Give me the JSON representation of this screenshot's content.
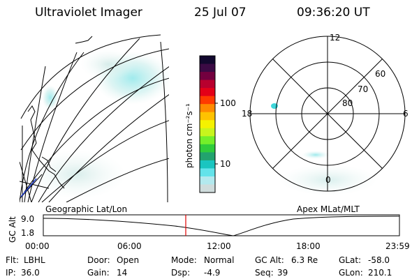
{
  "header": {
    "instrument": "Ultraviolet Imager",
    "date": "25 Jul 07",
    "time": "09:36:20 UT"
  },
  "colorbar": {
    "unit_label": "photon cm⁻²s⁻¹",
    "tick_100": "100",
    "tick_10": "10",
    "colors": [
      "#cfdcdc",
      "#b3e9ee",
      "#63e3ea",
      "#1ac5c0",
      "#22a36e",
      "#2fcc3b",
      "#74ef2a",
      "#c8f51d",
      "#f5f200",
      "#ffc200",
      "#ff8a00",
      "#ff3a00",
      "#e30018",
      "#b8002e",
      "#73003f",
      "#3b0a44",
      "#12082e"
    ]
  },
  "polar": {
    "labels": {
      "top": "12",
      "left": "18",
      "right": "6",
      "bottom": "0",
      "lat60": "60",
      "lat70": "70",
      "lat80": "80"
    }
  },
  "timeline": {
    "left_label": "Geographic Lat/Lon",
    "right_label": "Apex MLat/MLT",
    "y_axis_label": "GC Alt",
    "y_top": "9.0",
    "y_bottom": "1.8",
    "x_ticks": [
      "00:00",
      "06:00",
      "12:00",
      "18:00",
      "23:59"
    ],
    "current_time_fraction": 0.4
  },
  "info": {
    "flt_label": "Flt:",
    "flt_value": "LBHL",
    "ip_label": "IP:",
    "ip_value": "36.0",
    "door_label": "Door:",
    "door_value": "Open",
    "gain_label": "Gain:",
    "gain_value": "14",
    "mode_label": "Mode:",
    "mode_value": "Normal",
    "dsp_label": "Dsp:",
    "dsp_value": "-4.9",
    "gcalt_label": "GC Alt:",
    "gcalt_value": "6.3 Re",
    "seq_label": "Seq:",
    "seq_value": "39",
    "glat_label": "GLat:",
    "glat_value": "-58.0",
    "glon_label": "GLon:",
    "glon_value": "210.1"
  }
}
